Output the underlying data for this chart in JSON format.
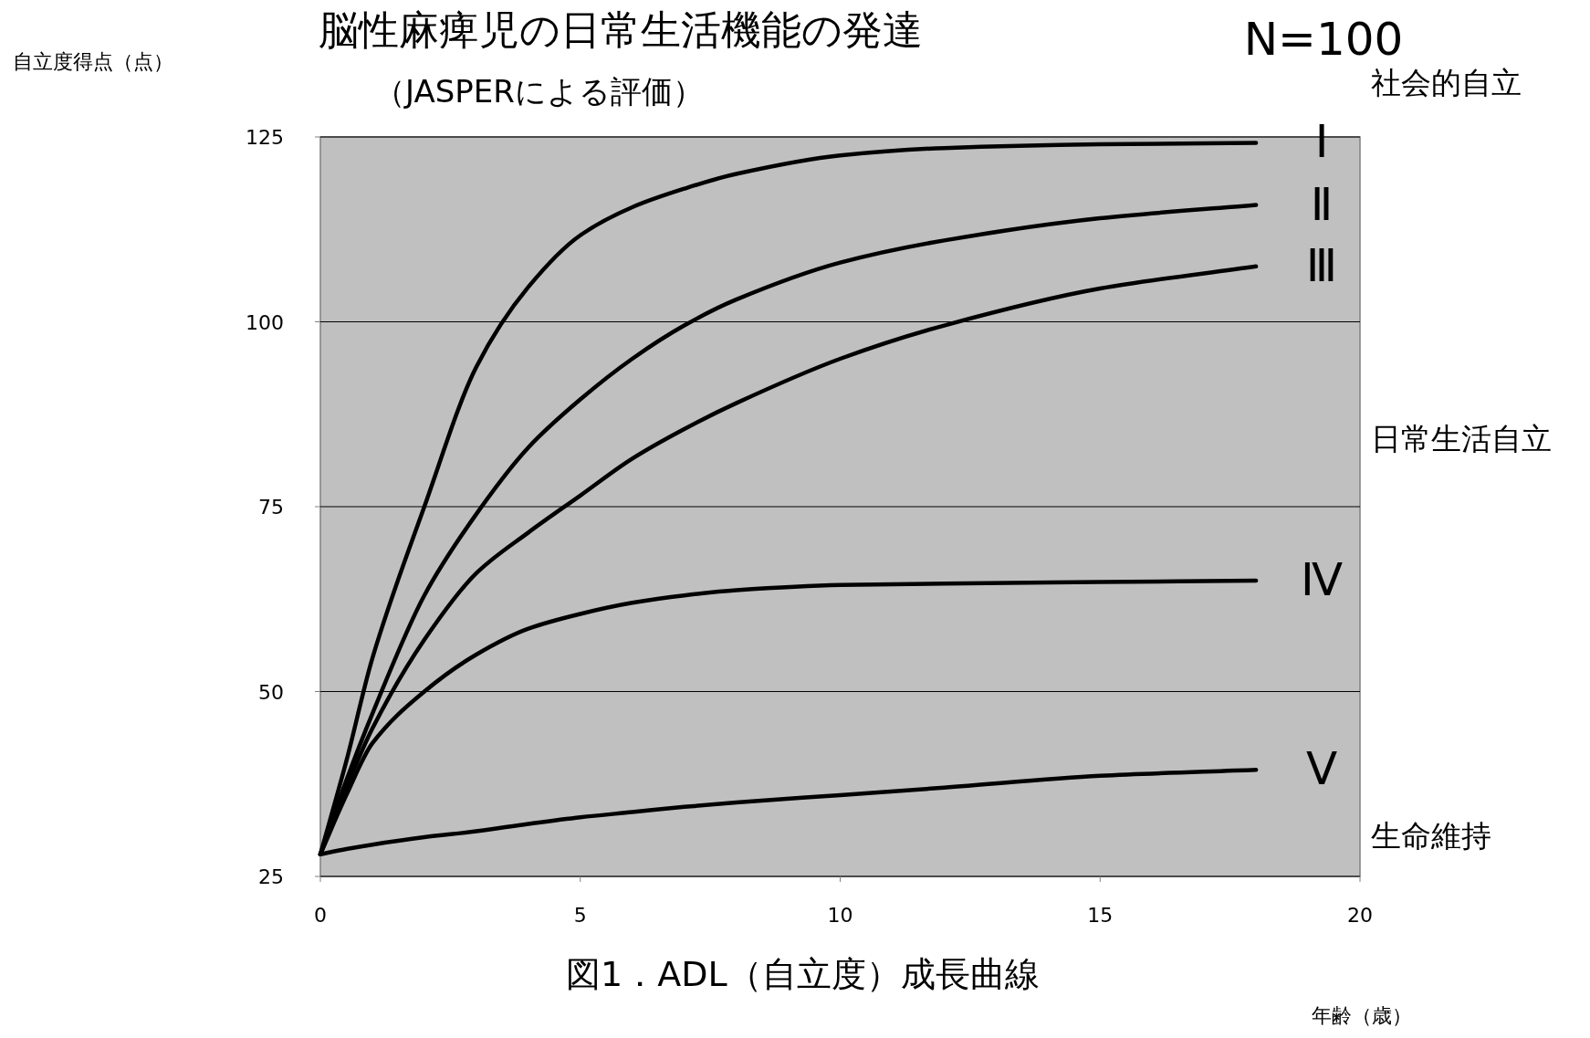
{
  "chart_data": {
    "type": "line",
    "title": "脳性麻痺児の日常生活機能の発達",
    "subtitle": "（JASPERによる評価）",
    "xlabel": "年齢（歳）",
    "ylabel": "自立度得点（点）",
    "annotations": [
      "N=100",
      "社会的自立",
      "日常生活自立",
      "生命維持",
      "図1．ADL（自立度）成長曲線"
    ],
    "x": [
      0,
      0.5,
      1,
      2,
      3,
      4,
      5,
      6,
      7,
      8,
      10,
      12,
      15,
      18
    ],
    "series": [
      {
        "name": "Ⅰ",
        "color": "#000000",
        "values": [
          28,
          40.6,
          54.5,
          75,
          93.9,
          104.7,
          111.7,
          115.5,
          118,
          120,
          122.5,
          123.5,
          124,
          124.2
        ]
      },
      {
        "name": "Ⅱ",
        "color": "#000000",
        "values": [
          28,
          38,
          47,
          63,
          74,
          83,
          89.5,
          95,
          99.5,
          103,
          108,
          111,
          114,
          115.8
        ]
      },
      {
        "name": "Ⅲ",
        "color": "#000000",
        "values": [
          28,
          37,
          45,
          57,
          66,
          71.5,
          76.5,
          81.5,
          85.5,
          89,
          95,
          99.5,
          104.5,
          107.5
        ]
      },
      {
        "name": "Ⅳ",
        "color": "#000000",
        "values": [
          28,
          36,
          43,
          50,
          55,
          58.5,
          60.5,
          62,
          63,
          63.7,
          64.4,
          64.6,
          64.8,
          65
        ]
      },
      {
        "name": "Ⅴ",
        "color": "#000000",
        "values": [
          28,
          28.7,
          29.3,
          30.3,
          31.1,
          32.1,
          33,
          33.7,
          34.4,
          35,
          36,
          37,
          38.6,
          39.4
        ]
      }
    ],
    "xlim": [
      0,
      20
    ],
    "xticks": [
      0,
      5,
      10,
      15,
      20
    ],
    "ylim": [
      25,
      125
    ],
    "yticks": [
      25,
      50,
      75,
      100,
      125
    ],
    "grid": "y",
    "marker": "none",
    "line_style": "solid"
  }
}
